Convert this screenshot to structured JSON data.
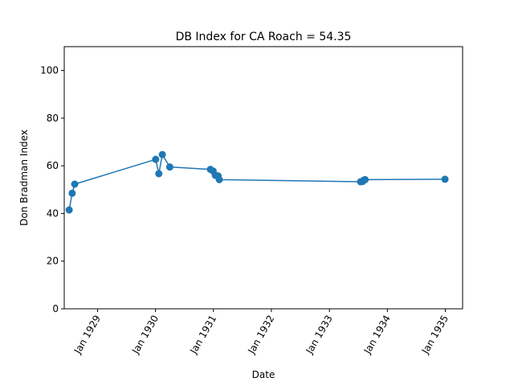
{
  "chart_data": {
    "type": "line",
    "title": "DB Index for CA Roach = 54.35",
    "xlabel": "Date",
    "ylabel": "Don Bradman Index",
    "ylim": [
      0,
      110
    ],
    "xlim": [
      "1928-06-05",
      "1935-04-20"
    ],
    "grid": false,
    "line_color": "#1f77b4",
    "yticks": [
      0,
      20,
      40,
      60,
      80,
      100
    ],
    "xticks": [
      {
        "date": "1929-01-01",
        "label": "Jan 1929"
      },
      {
        "date": "1930-01-01",
        "label": "Jan 1930"
      },
      {
        "date": "1931-01-01",
        "label": "Jan 1931"
      },
      {
        "date": "1932-01-01",
        "label": "Jan 1932"
      },
      {
        "date": "1933-01-01",
        "label": "Jan 1933"
      },
      {
        "date": "1934-01-01",
        "label": "Jan 1934"
      },
      {
        "date": "1935-01-01",
        "label": "Jan 1935"
      }
    ],
    "series": [
      {
        "points": [
          {
            "x": "1928-07-06",
            "y": 41.5
          },
          {
            "x": "1928-07-25",
            "y": 48.5
          },
          {
            "x": "1928-08-10",
            "y": 52.3
          },
          {
            "x": "1930-01-02",
            "y": 62.7
          },
          {
            "x": "1930-01-22",
            "y": 56.7
          },
          {
            "x": "1930-02-13",
            "y": 64.7
          },
          {
            "x": "1930-04-01",
            "y": 59.5
          },
          {
            "x": "1930-12-13",
            "y": 58.5
          },
          {
            "x": "1930-12-30",
            "y": 57.8
          },
          {
            "x": "1931-01-13",
            "y": 56.0
          },
          {
            "x": "1931-01-30",
            "y": 55.8
          },
          {
            "x": "1931-02-07",
            "y": 54.2
          },
          {
            "x": "1933-07-16",
            "y": 53.3
          },
          {
            "x": "1933-07-29",
            "y": 53.4
          },
          {
            "x": "1933-08-06",
            "y": 54.0
          },
          {
            "x": "1933-08-14",
            "y": 54.2
          },
          {
            "x": "1934-12-30",
            "y": 54.35
          }
        ]
      }
    ]
  }
}
